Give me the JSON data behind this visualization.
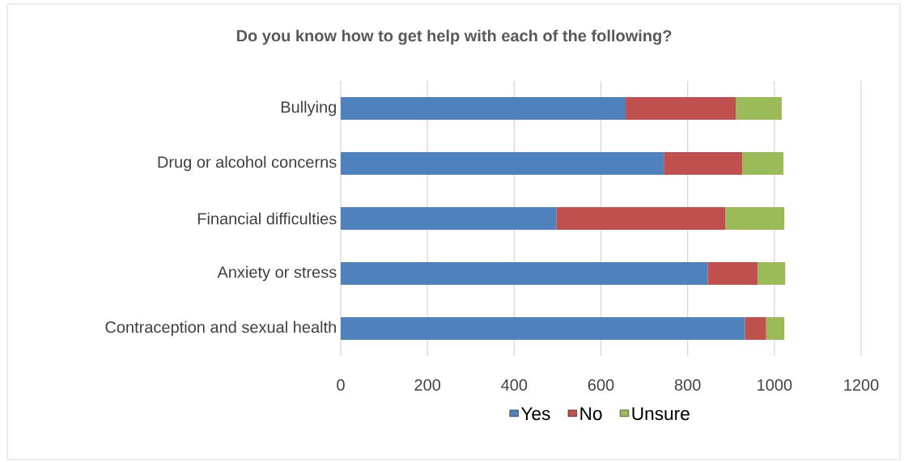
{
  "chart_data": {
    "type": "bar",
    "orientation": "horizontal",
    "stacked": true,
    "title": "Do you know how to get help with each of the following?",
    "categories": [
      "Bullying",
      "Drug or alcohol concerns",
      "Financial difficulties",
      "Anxiety or stress",
      "Contraception and sexual health"
    ],
    "series": [
      {
        "name": "Yes",
        "color": "#4f81bd",
        "values": [
          657,
          745,
          497,
          846,
          932
        ]
      },
      {
        "name": "No",
        "color": "#c0504d",
        "values": [
          254,
          181,
          390,
          115,
          49
        ]
      },
      {
        "name": "Unsure",
        "color": "#9bbb59",
        "values": [
          106,
          95,
          136,
          64,
          42
        ]
      }
    ],
    "xlim": [
      0,
      1200
    ],
    "xticks": [
      0,
      200,
      400,
      600,
      800,
      1000,
      1200
    ],
    "grid": "x",
    "legend": "bottom"
  }
}
